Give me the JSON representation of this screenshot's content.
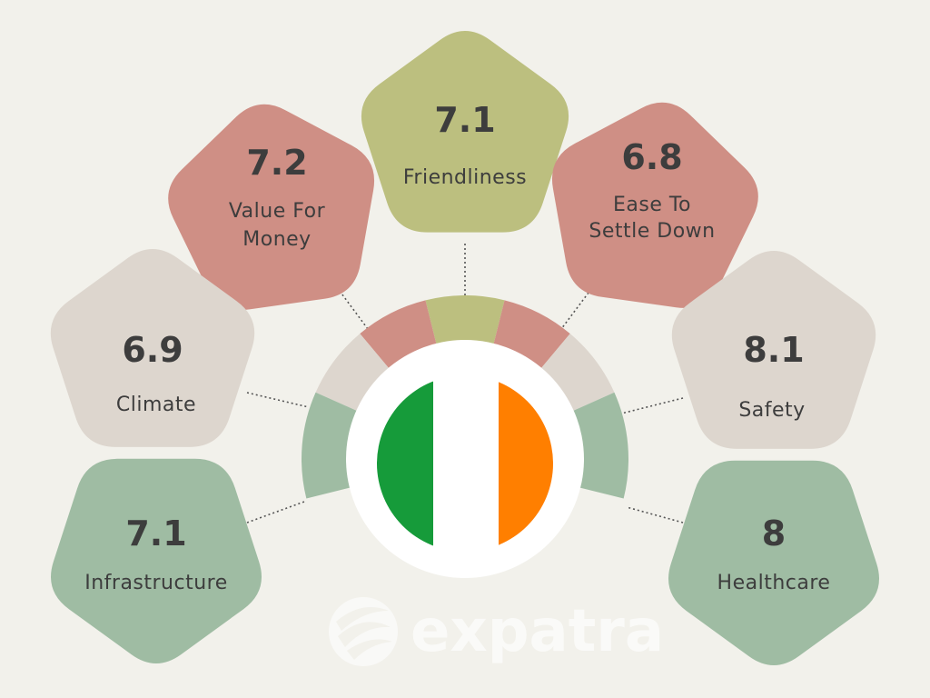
{
  "colors": {
    "background": "#f2f1eb",
    "red": "#cf8f85",
    "olive": "#bcbf7f",
    "beige": "#ddd6ce",
    "green": "#9fbca3",
    "flag_green": "#169b3a",
    "flag_white": "#ffffff",
    "flag_orange": "#ff7f00",
    "text": "#3d3d3d"
  },
  "center": {
    "flag_icon": "ireland-flag-icon"
  },
  "categories": [
    {
      "key": "friendliness",
      "score": "7.1",
      "label_lines": [
        "Friendliness"
      ],
      "color": "olive"
    },
    {
      "key": "value-for-money",
      "score": "7.2",
      "label_lines": [
        "Value For",
        "Money"
      ],
      "color": "red"
    },
    {
      "key": "ease-to-settle-down",
      "score": "6.8",
      "label_lines": [
        "Ease To",
        "Settle Down"
      ],
      "color": "red"
    },
    {
      "key": "climate",
      "score": "6.9",
      "label_lines": [
        "Climate"
      ],
      "color": "beige"
    },
    {
      "key": "safety",
      "score": "8.1",
      "label_lines": [
        "Safety"
      ],
      "color": "beige"
    },
    {
      "key": "infrastructure",
      "score": "7.1",
      "label_lines": [
        "Infrastructure"
      ],
      "color": "green"
    },
    {
      "key": "healthcare",
      "score": "8",
      "label_lines": [
        "Healthcare"
      ],
      "color": "green"
    }
  ],
  "watermark": {
    "text": "expatra",
    "icon": "expatra-logo-icon"
  }
}
